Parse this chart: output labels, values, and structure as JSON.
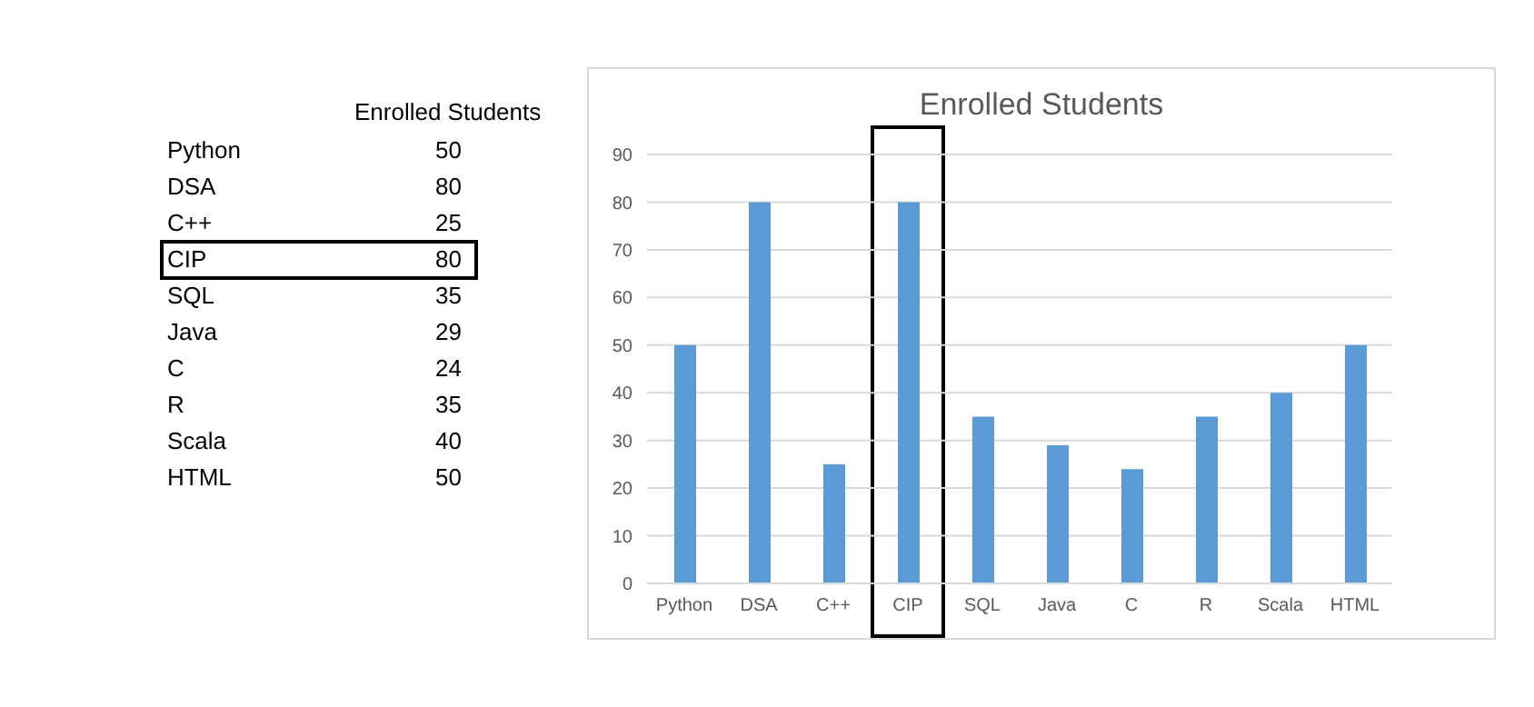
{
  "chart_data": [
    {
      "type": "other",
      "title": "Enrolled Students",
      "categories": [
        "Python",
        "DSA",
        "C++",
        "CIP",
        "SQL",
        "Java",
        "C",
        "R",
        "Scala",
        "HTML"
      ],
      "values": [
        50,
        80,
        25,
        80,
        35,
        29,
        24,
        35,
        40,
        50
      ],
      "data_labels": true
    },
    {
      "type": "bar",
      "title": "Enrolled Students",
      "categories": [
        "Python",
        "DSA",
        "C++",
        "CIP",
        "SQL",
        "Java",
        "C",
        "R",
        "Scala",
        "HTML"
      ],
      "values": [
        50,
        80,
        25,
        80,
        35,
        29,
        24,
        35,
        40,
        50
      ],
      "color": "#5b9bd5",
      "ylim": [
        0,
        90
      ],
      "yticks": [
        0,
        10,
        20,
        30,
        40,
        50,
        60,
        70,
        80,
        90
      ],
      "grid": "y"
    }
  ]
}
